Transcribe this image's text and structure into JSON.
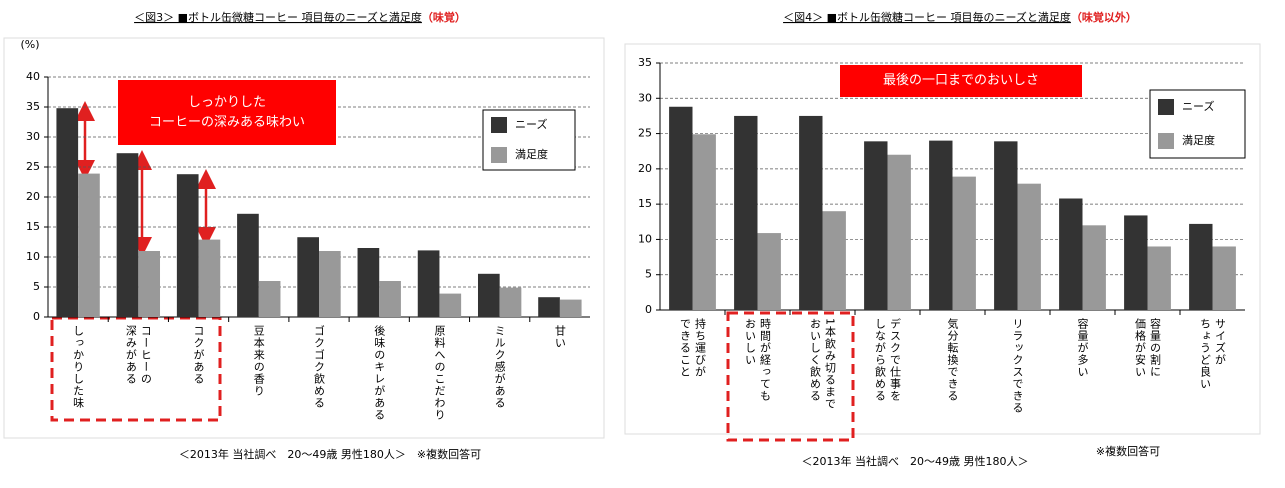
{
  "chart_data": [
    {
      "type": "bar",
      "title": "＜図3＞ ■ボトル缶微糖コーヒー 項目毎のニーズと満足度",
      "title_note": "（味覚）",
      "y_label": "(%)",
      "annotation": "しっかりした\nコーヒーの深みある味わい",
      "footnote": "＜2013年 当社調べ　20～49歳 男性180人＞　※複数回答可",
      "categories": [
        "しっかりした味",
        "コーヒーの\n深みがある",
        "コクがある",
        "豆本来の香り",
        "ゴクゴク飲める",
        "後味のキレがある",
        "原料へのこだわり",
        "ミルク感がある",
        "甘い"
      ],
      "series": [
        {
          "name": "ニーズ",
          "color": "#333333",
          "values": [
            34.8,
            27.3,
            23.8,
            17.2,
            13.3,
            11.5,
            11.1,
            7.2,
            3.3
          ]
        },
        {
          "name": "満足度",
          "color": "#999999",
          "values": [
            23.9,
            11.0,
            12.9,
            6.0,
            11.0,
            6.0,
            3.9,
            4.9,
            2.9
          ]
        }
      ],
      "ylim": [
        0,
        40
      ],
      "yticks": [
        0,
        5,
        10,
        15,
        20,
        25,
        30,
        35,
        40
      ],
      "grid": true,
      "legend": "upper right"
    },
    {
      "type": "bar",
      "title": "＜図4＞ ■ボトル缶微糖コーヒー 項目毎のニーズと満足度",
      "title_note": "（味覚以外）",
      "annotation": "最後の一口までのおいしさ",
      "footnote": "＜2013年 当社調べ　20～49歳 男性180人＞",
      "footnote_note": "※複数回答可",
      "categories": [
        "持ち運びが\nできること",
        "時間が経っても\nおいしい",
        "1本飲み切るまで\nおいしく飲める",
        "デスクで仕事を\nしながら飲める",
        "気分転換できる",
        "リラックスできる",
        "容量が多い",
        "容量の割に\n価格が安い",
        "サイズが\nちょうど良い"
      ],
      "series": [
        {
          "name": "ニーズ",
          "color": "#333333",
          "values": [
            28.8,
            27.5,
            27.5,
            23.9,
            24.0,
            23.9,
            15.8,
            13.4,
            12.2
          ]
        },
        {
          "name": "満足度",
          "color": "#999999",
          "values": [
            24.9,
            10.9,
            14.0,
            22.0,
            18.9,
            17.9,
            12.0,
            9.0,
            9.0
          ]
        }
      ],
      "ylim": [
        0,
        35
      ],
      "yticks": [
        0,
        5,
        10,
        15,
        20,
        25,
        30,
        35
      ],
      "grid": true,
      "legend": "upper right"
    }
  ]
}
